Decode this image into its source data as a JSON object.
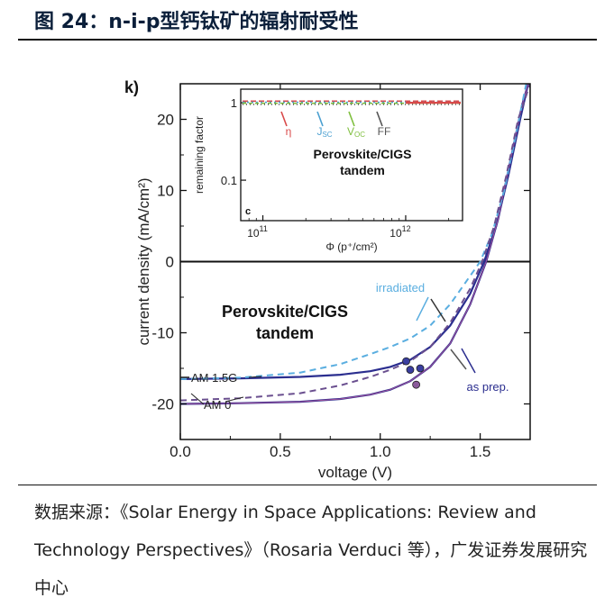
{
  "figure_title": "图 24：n-i-p型钙钛矿的辐射耐受性",
  "source_note": "数据来源：《Solar Energy in Space Applications: Review and Technology Perspectives》（Rosaria Verduci 等），广发证券发展研究中心",
  "colors": {
    "as_prep": "#2b2e8f",
    "irradiated": "#5aaee0",
    "eta": "#d94a4a",
    "jsc": "#4a9fd0",
    "voc": "#7fbf3f",
    "ff": "#555555"
  },
  "chart_data": {
    "type": "line",
    "panel_label": "k)",
    "title": "Perovskite/CIGS tandem",
    "xlabel": "voltage (V)",
    "ylabel": "current density (mA/cm²)",
    "xlim": [
      0.0,
      1.75
    ],
    "ylim": [
      -25,
      25
    ],
    "xticks": [
      "0.0",
      "0.5",
      "1.0",
      "1.5"
    ],
    "yticks": [
      "20",
      "10",
      "0",
      "-10",
      "-20"
    ],
    "series": [
      {
        "name": "AM 1.5G",
        "values": [
          [
            0.0,
            -16.5
          ],
          [
            0.3,
            -16.4
          ],
          [
            0.6,
            -16.2
          ],
          [
            0.8,
            -15.9
          ],
          [
            0.95,
            -15.4
          ],
          [
            1.05,
            -14.8
          ],
          [
            1.15,
            -13.8
          ],
          [
            1.25,
            -12.0
          ],
          [
            1.35,
            -9.0
          ],
          [
            1.45,
            -4.5
          ],
          [
            1.52,
            0.0
          ],
          [
            1.58,
            5.0
          ],
          [
            1.64,
            12.0
          ],
          [
            1.7,
            20.0
          ],
          [
            1.74,
            25.0
          ]
        ]
      },
      {
        "name": "AM 0",
        "values": [
          [
            0.0,
            -20.0
          ],
          [
            0.3,
            -19.9
          ],
          [
            0.6,
            -19.7
          ],
          [
            0.8,
            -19.3
          ],
          [
            0.95,
            -18.7
          ],
          [
            1.05,
            -18.0
          ],
          [
            1.15,
            -16.8
          ],
          [
            1.25,
            -14.8
          ],
          [
            1.35,
            -11.5
          ],
          [
            1.45,
            -6.0
          ],
          [
            1.53,
            0.0
          ],
          [
            1.59,
            6.0
          ],
          [
            1.65,
            14.0
          ],
          [
            1.71,
            22.0
          ],
          [
            1.74,
            25.0
          ]
        ]
      },
      {
        "name": "AM 1.5G irradiated",
        "values": [
          [
            0.0,
            -16.5
          ],
          [
            0.3,
            -16.3
          ],
          [
            0.6,
            -15.6
          ],
          [
            0.8,
            -14.4
          ],
          [
            0.95,
            -13.0
          ],
          [
            1.05,
            -12.0
          ],
          [
            1.15,
            -10.8
          ],
          [
            1.25,
            -9.0
          ],
          [
            1.35,
            -6.0
          ],
          [
            1.45,
            -2.0
          ],
          [
            1.5,
            0.0
          ],
          [
            1.56,
            4.0
          ],
          [
            1.62,
            10.0
          ],
          [
            1.68,
            18.0
          ],
          [
            1.73,
            25.0
          ]
        ]
      },
      {
        "name": "AM 0 irradiated",
        "values": [
          [
            0.0,
            -19.5
          ],
          [
            0.3,
            -19.2
          ],
          [
            0.6,
            -18.5
          ],
          [
            0.8,
            -17.4
          ],
          [
            0.95,
            -16.2
          ],
          [
            1.05,
            -15.2
          ],
          [
            1.15,
            -14.0
          ],
          [
            1.25,
            -12.0
          ],
          [
            1.35,
            -8.6
          ],
          [
            1.45,
            -3.8
          ],
          [
            1.51,
            0.0
          ],
          [
            1.57,
            5.0
          ],
          [
            1.63,
            12.0
          ],
          [
            1.69,
            20.0
          ],
          [
            1.75,
            25.0
          ]
        ]
      }
    ],
    "mpp_points": [
      [
        1.13,
        -14.0
      ],
      [
        1.15,
        -15.2
      ],
      [
        1.2,
        -15.0
      ],
      [
        1.18,
        -17.3
      ]
    ],
    "annotations": [
      "irradiated",
      "as prep.",
      "AM 1.5G",
      "AM 0"
    ],
    "inset": {
      "type": "line",
      "panel_label": "c",
      "title": "Perovskite/CIGS tandem",
      "ylabel": "remaining factor",
      "xlabel": "Φ (p⁺/cm²)",
      "xscale": "log",
      "yscale": "log",
      "xlim": [
        70000000000.0,
        2500000000000.0
      ],
      "ylim": [
        0.03,
        1.5
      ],
      "xtick_labels": [
        {
          "base": "10",
          "exp": "11",
          "value": 100000000000.0
        },
        {
          "base": "10",
          "exp": "12",
          "value": 1000000000000.0
        }
      ],
      "ytick_labels": [
        {
          "label": "1",
          "value": 1
        },
        {
          "label": "0.1",
          "value": 0.1
        }
      ],
      "series": [
        {
          "name": "η",
          "sub": "",
          "values": [
            [
              70000000000.0,
              1.0
            ],
            [
              2500000000000.0,
              1.0
            ]
          ]
        },
        {
          "name": "J",
          "sub": "SC",
          "values": [
            [
              70000000000.0,
              1.0
            ],
            [
              2500000000000.0,
              1.0
            ]
          ]
        },
        {
          "name": "V",
          "sub": "OC",
          "values": [
            [
              70000000000.0,
              1.0
            ],
            [
              2500000000000.0,
              1.0
            ]
          ]
        },
        {
          "name": "FF",
          "sub": "",
          "values": [
            [
              70000000000.0,
              1.0
            ],
            [
              2500000000000.0,
              1.0
            ]
          ]
        }
      ]
    }
  }
}
